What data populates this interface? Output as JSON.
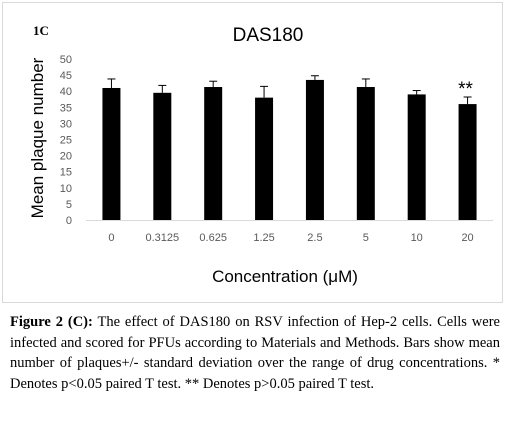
{
  "chart_data": {
    "type": "bar",
    "panel_label": "1C",
    "title": "DAS180",
    "xlabel": "Concentration (μM)",
    "ylabel": "Mean plaque number",
    "categories": [
      "0",
      "0.3125",
      "0.625",
      "1.25",
      "2.5",
      "5",
      "10",
      "20"
    ],
    "values": [
      41,
      39.5,
      41.3,
      38,
      43.5,
      41.3,
      39,
      36
    ],
    "errors": [
      2.8,
      2.3,
      1.8,
      3.5,
      1.3,
      2.5,
      1.2,
      2.2
    ],
    "ylim": [
      0,
      50
    ],
    "yticks": [
      0,
      5,
      10,
      15,
      20,
      25,
      30,
      35,
      40,
      45,
      50
    ],
    "grid": false,
    "bar_color": "#000000",
    "annotation": {
      "category": "20",
      "text": "**"
    }
  },
  "caption": {
    "label": "Figure 2 (C):",
    "text": " The effect of DAS180 on RSV infection of Hep-2 cells. Cells were infected and scored for PFUs according to Materials and Methods. Bars show mean number of plaques+/- standard deviation over the range of drug concentrations. * Denotes p<0.05 paired T test. ** Denotes p>0.05 paired T test."
  }
}
